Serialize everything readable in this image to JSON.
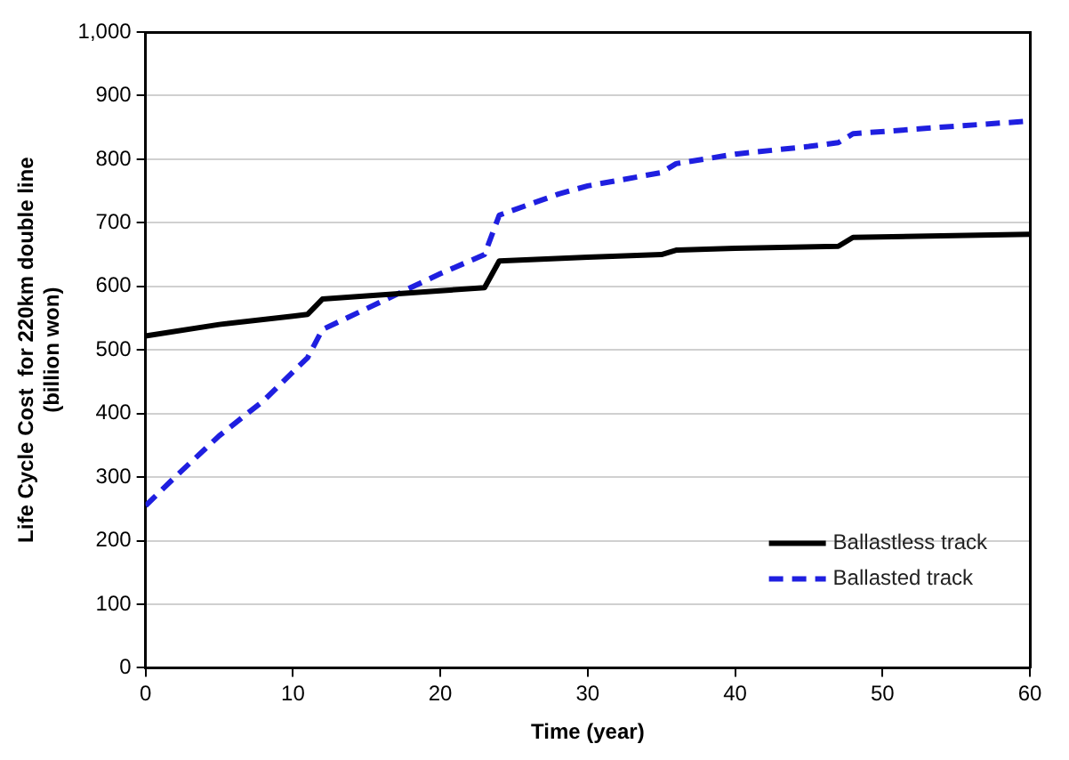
{
  "chart_data": {
    "type": "line",
    "xlabel": "Time (year)",
    "ylabel": "Life Cycle Cost  for 220km double line\n(billion won)",
    "xlim": [
      0,
      60
    ],
    "xticks": [
      0,
      10,
      20,
      30,
      40,
      50,
      60
    ],
    "ylim": [
      0,
      1000
    ],
    "yticks": [
      0,
      100,
      200,
      300,
      400,
      500,
      600,
      700,
      800,
      900,
      {
        "value": 1000,
        "label": "1,000"
      }
    ],
    "grid": "y",
    "legend": "bottom right",
    "marker": "none",
    "series": [
      {
        "name": "Ballastless track",
        "color": "#000000",
        "line_style": "solid",
        "x": [
          0,
          5,
          10,
          11,
          12,
          15,
          20,
          23,
          24,
          30,
          35,
          36,
          40,
          47,
          48,
          60
        ],
        "values": [
          522,
          540,
          553,
          556,
          580,
          585,
          593,
          598,
          640,
          646,
          650,
          657,
          660,
          663,
          677,
          682
        ]
      },
      {
        "name": "Ballasted track",
        "color": "#1f1fe0",
        "line_style": "dashed",
        "x": [
          0,
          2,
          5,
          8,
          11,
          12,
          15,
          20,
          23,
          24,
          28,
          30,
          35,
          36,
          40,
          45,
          47,
          48,
          55,
          60
        ],
        "values": [
          255,
          300,
          365,
          420,
          488,
          532,
          565,
          620,
          650,
          712,
          745,
          758,
          779,
          793,
          808,
          820,
          826,
          840,
          852,
          860
        ]
      }
    ]
  }
}
